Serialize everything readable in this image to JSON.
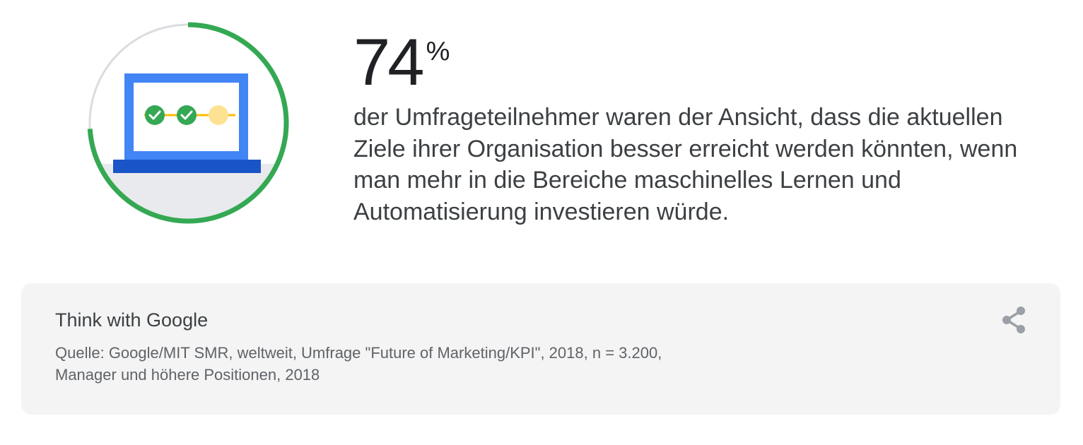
{
  "statistic": {
    "value": "74",
    "unit": "%",
    "description": "der Umfrageteilnehmer waren der Ansicht, dass die aktuellen Ziele ihrer Organisation besser erreicht werden könnten, wenn man mehr in die Bereiche maschinelles Lernen und Automatisierung investieren würde.",
    "progress_fraction": 0.74,
    "illustration_icon": "laptop-progress-icon"
  },
  "source_card": {
    "brand": "Think with Google",
    "source": "Quelle: Google/MIT SMR, weltweit, Umfrage \"Future of Marketing/KPI\", 2018, n = 3.200, Manager und höhere Positionen, 2018",
    "share_icon": "share-icon"
  },
  "colors": {
    "ring_progress": "#34a853",
    "ring_track": "#dadce0",
    "laptop_blue": "#4285f4",
    "laptop_base": "#1a55c7",
    "check_green": "#34a853",
    "pending_yellow": "#fde293",
    "card_background": "#f4f4f4"
  }
}
